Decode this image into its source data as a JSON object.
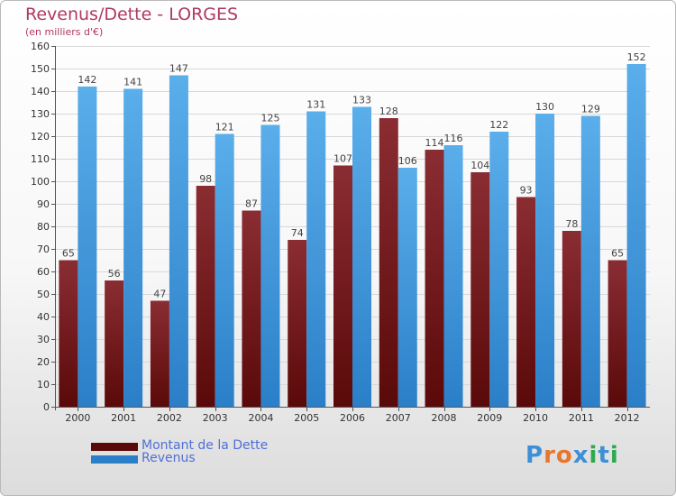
{
  "title": "Revenus/Dette - LORGES",
  "subtitle": "(en milliers d'€)",
  "colors": {
    "dette_top": "#8a2d33",
    "dette_bottom": "#5a0909",
    "revenus_top": "#5aaeea",
    "revenus_bottom": "#2b7fc8",
    "title": "#b0395f",
    "legend_text": "#4f6fd6"
  },
  "legend": {
    "dette_label": "Montant de la Dette",
    "revenus_label": "Revenus"
  },
  "logo": {
    "text": "Proxiti",
    "letters": [
      "P",
      "r",
      "o",
      "x",
      "i",
      "t",
      "i"
    ],
    "letter_colors": [
      "#3d8fd6",
      "#e8762d",
      "#e8762d",
      "#3d8fd6",
      "#2fa84f",
      "#3d8fd6",
      "#2fa84f"
    ]
  },
  "chart_data": {
    "type": "bar",
    "categories": [
      "2000",
      "2001",
      "2002",
      "2003",
      "2004",
      "2005",
      "2006",
      "2007",
      "2008",
      "2009",
      "2010",
      "2011",
      "2012"
    ],
    "series": [
      {
        "name": "Montant de la Dette",
        "values": [
          65,
          56,
          47,
          98,
          87,
          74,
          107,
          128,
          114,
          104,
          93,
          78,
          65
        ]
      },
      {
        "name": "Revenus",
        "values": [
          142,
          141,
          147,
          121,
          125,
          131,
          133,
          106,
          116,
          122,
          130,
          129,
          152
        ]
      }
    ],
    "ylim": [
      0,
      160
    ],
    "ytick_step": 10,
    "grid": true,
    "legend_position": "bottom-left"
  }
}
